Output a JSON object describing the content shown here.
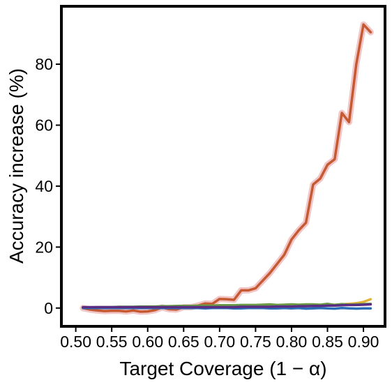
{
  "chart_data": {
    "type": "line",
    "title": "",
    "xlabel": "Target Coverage (1 − α)",
    "ylabel": "Accuracy increase (%)",
    "xlim": [
      0.48,
      0.93
    ],
    "ylim": [
      -6,
      99
    ],
    "x_ticks": [
      0.5,
      0.55,
      0.6,
      0.65,
      0.7,
      0.75,
      0.8,
      0.85,
      0.9
    ],
    "x_tick_labels": [
      "0.50",
      "0.55",
      "0.60",
      "0.65",
      "0.70",
      "0.75",
      "0.80",
      "0.85",
      "0.90"
    ],
    "y_ticks": [
      0,
      20,
      40,
      60,
      80
    ],
    "y_tick_labels": [
      "0",
      "20",
      "40",
      "60",
      "80"
    ],
    "grid": false,
    "legend": "none",
    "x": [
      0.51,
      0.52,
      0.53,
      0.54,
      0.55,
      0.56,
      0.57,
      0.58,
      0.59,
      0.6,
      0.61,
      0.62,
      0.63,
      0.64,
      0.65,
      0.66,
      0.67,
      0.68,
      0.69,
      0.7,
      0.71,
      0.72,
      0.73,
      0.74,
      0.75,
      0.76,
      0.77,
      0.78,
      0.79,
      0.8,
      0.81,
      0.82,
      0.83,
      0.84,
      0.85,
      0.86,
      0.87,
      0.88,
      0.89,
      0.9,
      0.91
    ],
    "series": [
      {
        "color": "#c55a32",
        "band_color": "#e8a0a0",
        "values": [
          0.0,
          -0.5,
          -0.8,
          -1.0,
          -0.9,
          -0.9,
          -1.1,
          -0.8,
          -1.2,
          -1.1,
          -0.7,
          0.2,
          -0.4,
          -0.5,
          0.3,
          0.3,
          0.8,
          1.5,
          1.4,
          3.0,
          2.9,
          2.7,
          5.8,
          5.8,
          6.5,
          9.0,
          11.5,
          14.5,
          17.5,
          22.5,
          25.5,
          28.0,
          40.5,
          42.5,
          47.0,
          48.8,
          64.0,
          61.0,
          80.0,
          93.0,
          90.5
        ]
      },
      {
        "color": "#e3b33b",
        "values": [
          0.1,
          0.1,
          0.1,
          0.1,
          0.2,
          0.2,
          0.2,
          0.2,
          0.2,
          0.2,
          0.3,
          0.3,
          0.3,
          0.3,
          0.3,
          0.4,
          0.4,
          0.4,
          0.4,
          0.5,
          0.5,
          0.5,
          0.5,
          0.6,
          0.6,
          0.6,
          0.7,
          0.7,
          0.7,
          0.8,
          0.8,
          0.9,
          0.9,
          1.0,
          1.0,
          1.1,
          1.2,
          1.4,
          1.6,
          2.0,
          2.9
        ]
      },
      {
        "color": "#6a9a45",
        "values": [
          0.2,
          0.2,
          0.3,
          0.3,
          0.3,
          0.4,
          0.4,
          0.4,
          0.5,
          0.5,
          0.5,
          0.6,
          0.6,
          0.7,
          0.7,
          0.7,
          0.8,
          0.8,
          0.8,
          0.9,
          0.9,
          0.9,
          1.0,
          1.0,
          1.0,
          1.1,
          1.2,
          1.0,
          1.1,
          1.2,
          1.1,
          1.2,
          1.2,
          1.1,
          1.4,
          1.0,
          1.3,
          1.1,
          1.2,
          1.3,
          1.4
        ]
      },
      {
        "color": "#2a6fb5",
        "values": [
          0.0,
          0.0,
          0.0,
          0.0,
          0.0,
          0.0,
          0.0,
          0.0,
          0.0,
          0.0,
          0.0,
          0.0,
          0.0,
          0.0,
          0.0,
          0.0,
          0.0,
          -0.1,
          0.0,
          0.0,
          0.0,
          -0.1,
          -0.1,
          0.0,
          0.0,
          0.0,
          -0.1,
          -0.1,
          0.0,
          -0.1,
          0.0,
          -0.2,
          -0.1,
          0.0,
          -0.1,
          -0.2,
          0.0,
          -0.1,
          -0.2,
          -0.1,
          -0.1
        ]
      },
      {
        "color": "#5b2c83",
        "values": [
          0.3,
          0.3,
          0.3,
          0.3,
          0.3,
          0.3,
          0.3,
          0.3,
          0.3,
          0.3,
          0.3,
          0.3,
          0.3,
          0.3,
          0.3,
          0.3,
          0.3,
          0.3,
          0.3,
          0.3,
          0.3,
          0.3,
          0.4,
          0.4,
          0.4,
          0.4,
          0.4,
          0.5,
          0.5,
          0.5,
          0.6,
          0.6,
          0.7,
          0.7,
          0.8,
          0.8,
          0.9,
          1.0,
          1.0,
          1.1,
          1.2
        ]
      }
    ]
  }
}
